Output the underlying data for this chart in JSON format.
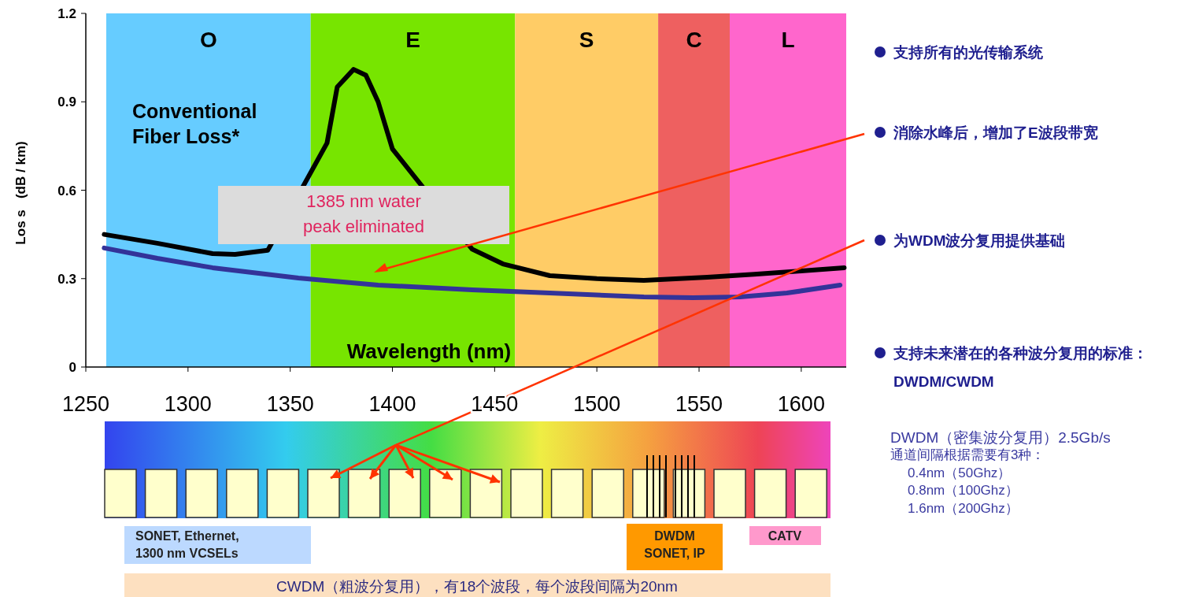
{
  "chart_data": [
    {
      "type": "line",
      "ylabel": "Los s   (dB / km)",
      "xlabel": "Wavelength (nm)",
      "xlim": [
        1250,
        1622
      ],
      "ylim": [
        0,
        1.2
      ],
      "xticks": [
        1250,
        1300,
        1350,
        1400,
        1450,
        1500,
        1550,
        1600
      ],
      "yticks": [
        0,
        0.3,
        0.6,
        0.9,
        1.2
      ],
      "bands": [
        {
          "axis": "x",
          "from": 1260,
          "to": 1360,
          "label": "O",
          "color": "#66ccff"
        },
        {
          "axis": "x",
          "from": 1360,
          "to": 1460,
          "label": "E",
          "color": "#77e500"
        },
        {
          "axis": "x",
          "from": 1460,
          "to": 1530,
          "label": "S",
          "color": "#ffcc66"
        },
        {
          "axis": "x",
          "from": 1530,
          "to": 1565,
          "label": "C",
          "color": "#ee6060"
        },
        {
          "axis": "x",
          "from": 1565,
          "to": 1622,
          "label": "L",
          "color": "#ff66cc"
        }
      ],
      "series": [
        {
          "name": "Conventional Fiber Loss*",
          "color": "#000000",
          "x": [
            1259,
            1285,
            1312,
            1323,
            1339,
            1368,
            1373,
            1381,
            1387,
            1393,
            1400,
            1439,
            1454,
            1477,
            1500,
            1523,
            1554,
            1577,
            1600,
            1621
          ],
          "values": [
            0.45,
            0.42,
            0.385,
            0.382,
            0.396,
            0.76,
            0.95,
            1.01,
            0.99,
            0.9,
            0.74,
            0.4,
            0.35,
            0.31,
            0.3,
            0.294,
            0.305,
            0.315,
            0.326,
            0.337
          ]
        },
        {
          "color": "#333399",
          "x": [
            1259,
            1285,
            1312,
            1354,
            1393,
            1439,
            1477,
            1523,
            1547,
            1570,
            1593,
            1619
          ],
          "values": [
            0.404,
            0.369,
            0.337,
            0.302,
            0.278,
            0.262,
            0.251,
            0.238,
            0.235,
            0.238,
            0.251,
            0.278
          ]
        }
      ],
      "annotations": [
        "1385 nm water\npeak eliminated"
      ]
    },
    {
      "type": "other",
      "annotations": [
        "SONET, Ethernet,\n1300 nm VCSELs",
        "DWDM\nSONET, IP",
        "CATV",
        "CWDM（粗波分复用），有18个波段，每个波段间隔为20nm"
      ]
    },
    {
      "type": "other",
      "annotations": [
        "支持所有的光传输系统",
        "消除水峰后，增加了E波段带宽",
        "为WDM波分复用提供基础",
        "支持未来潜在的各种波分复用的标准：\nDWDM/CWDM",
        "DWDM（密集波分复用）2.5Gb/s",
        "通道间隔根据需要有3种：",
        "0.4nm（50Ghz）",
        "0.8nm（100Ghz）",
        "1.6nm（200Ghz）"
      ]
    }
  ]
}
